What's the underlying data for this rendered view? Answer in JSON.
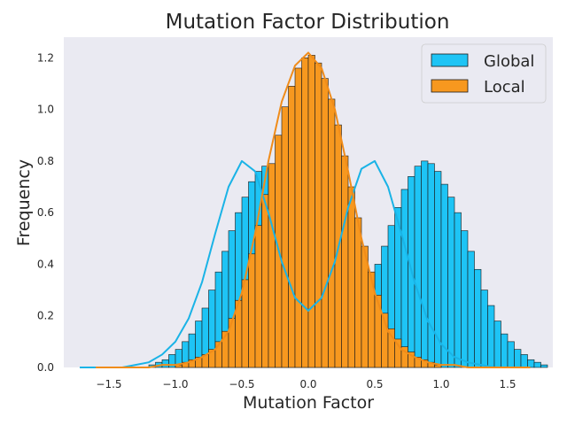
{
  "chart_data": {
    "type": "bar",
    "title": "Mutation Factor Distribution",
    "xlabel": "Mutation Factor",
    "ylabel": "Frequency",
    "xlim": [
      -1.84,
      1.84
    ],
    "ylim": [
      0,
      1.28
    ],
    "xticks": [
      -1.5,
      -1.0,
      -0.5,
      0.0,
      0.5,
      1.0,
      1.5
    ],
    "xtick_labels": [
      "−1.5",
      "−1.0",
      "−0.5",
      "0.0",
      "0.5",
      "1.0",
      "1.5"
    ],
    "yticks": [
      0.0,
      0.2,
      0.4,
      0.6,
      0.8,
      1.0,
      1.2
    ],
    "ytick_labels": [
      "0.0",
      "0.2",
      "0.4",
      "0.6",
      "0.8",
      "1.0",
      "1.2"
    ],
    "bin_width": 0.05,
    "series": [
      {
        "name": "Global",
        "color": "#1ec4f5",
        "bin_start": -1.2,
        "values": [
          0.01,
          0.02,
          0.03,
          0.05,
          0.07,
          0.1,
          0.13,
          0.18,
          0.23,
          0.3,
          0.37,
          0.45,
          0.53,
          0.6,
          0.66,
          0.72,
          0.76,
          0.78,
          0.79,
          0.78,
          0.74,
          0.68,
          0.62,
          0.54,
          0.47,
          0.39,
          0.33,
          0.27,
          0.23,
          0.22,
          0.22,
          0.24,
          0.28,
          0.33,
          0.4,
          0.47,
          0.55,
          0.62,
          0.69,
          0.74,
          0.78,
          0.8,
          0.79,
          0.76,
          0.71,
          0.66,
          0.6,
          0.53,
          0.45,
          0.38,
          0.3,
          0.24,
          0.18,
          0.13,
          0.1,
          0.07,
          0.05,
          0.03,
          0.02,
          0.01
        ]
      },
      {
        "name": "Local",
        "color": "#f7981f",
        "bin_start": -1.0,
        "values": [
          0.01,
          0.02,
          0.03,
          0.04,
          0.05,
          0.07,
          0.1,
          0.14,
          0.19,
          0.26,
          0.34,
          0.44,
          0.55,
          0.67,
          0.79,
          0.9,
          1.01,
          1.09,
          1.16,
          1.2,
          1.21,
          1.18,
          1.12,
          1.04,
          0.94,
          0.82,
          0.7,
          0.58,
          0.47,
          0.37,
          0.28,
          0.21,
          0.15,
          0.11,
          0.08,
          0.06,
          0.04,
          0.03,
          0.02,
          0.01
        ]
      }
    ],
    "kde": [
      {
        "name": "Global",
        "x": [
          -1.72,
          -1.6,
          -1.5,
          -1.4,
          -1.3,
          -1.2,
          -1.1,
          -1.0,
          -0.9,
          -0.8,
          -0.7,
          -0.6,
          -0.5,
          -0.4,
          -0.3,
          -0.2,
          -0.1,
          0.0,
          0.1,
          0.2,
          0.3,
          0.4,
          0.5,
          0.6,
          0.7,
          0.8,
          0.9,
          1.0,
          1.1,
          1.2,
          1.3,
          1.4,
          1.5,
          1.6
        ],
        "y": [
          0.0,
          0.0,
          0.0,
          0.0,
          0.01,
          0.02,
          0.05,
          0.1,
          0.19,
          0.33,
          0.52,
          0.7,
          0.8,
          0.76,
          0.6,
          0.41,
          0.27,
          0.22,
          0.27,
          0.41,
          0.62,
          0.77,
          0.8,
          0.7,
          0.52,
          0.33,
          0.18,
          0.09,
          0.04,
          0.02,
          0.01,
          0.0,
          0.0,
          0.0
        ]
      },
      {
        "name": "Local",
        "x": [
          -1.6,
          -1.5,
          -1.4,
          -1.3,
          -1.2,
          -1.1,
          -1.0,
          -0.9,
          -0.8,
          -0.7,
          -0.6,
          -0.5,
          -0.4,
          -0.3,
          -0.2,
          -0.1,
          0.0,
          0.1,
          0.2,
          0.3,
          0.4,
          0.5,
          0.6,
          0.7,
          0.8,
          0.9,
          1.0,
          1.1,
          1.2,
          1.3,
          1.4,
          1.5,
          1.6,
          1.67
        ],
        "y": [
          0.0,
          0.0,
          0.0,
          0.0,
          0.0,
          0.01,
          0.01,
          0.02,
          0.04,
          0.07,
          0.14,
          0.29,
          0.52,
          0.8,
          1.03,
          1.17,
          1.22,
          1.16,
          1.0,
          0.76,
          0.5,
          0.29,
          0.14,
          0.07,
          0.04,
          0.02,
          0.01,
          0.01,
          0.0,
          0.0,
          0.0,
          0.0,
          0.0,
          0.0
        ]
      }
    ],
    "legend": {
      "position": "top-right",
      "entries": [
        {
          "label": "Global",
          "color": "#1ec4f5"
        },
        {
          "label": "Local",
          "color": "#f7981f"
        }
      ]
    },
    "colors": {
      "plot_background": "#eaeaf2",
      "bar_edge": "#1a1a1a",
      "global_line": "#1ab3e6",
      "local_line": "#f08c1a"
    }
  }
}
